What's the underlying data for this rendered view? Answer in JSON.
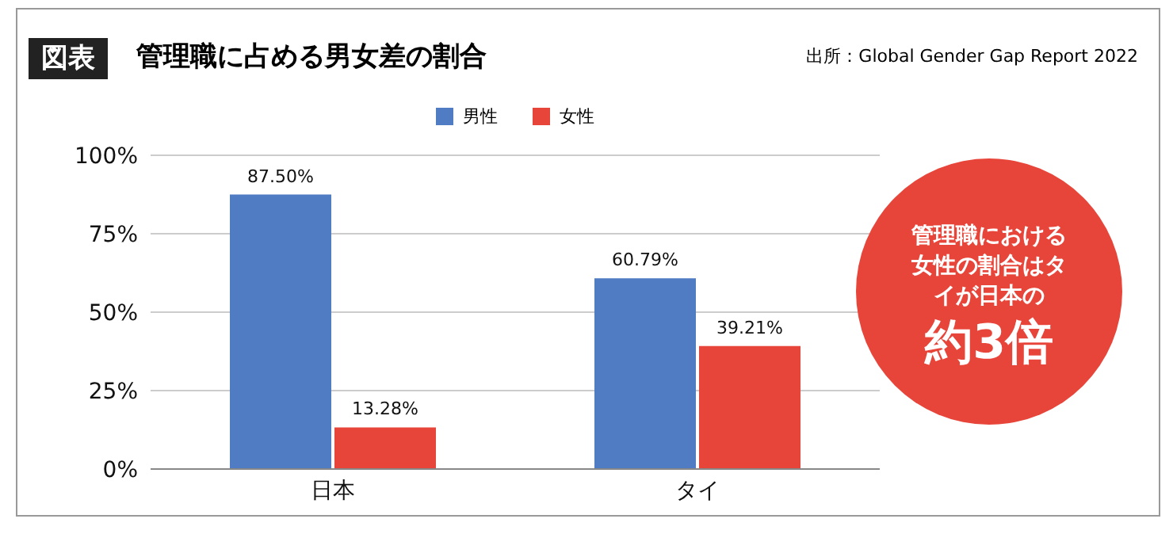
{
  "chart_data": {
    "type": "bar",
    "title": "管理職に占める男女差の割合",
    "categories": [
      "日本",
      "タイ"
    ],
    "series": [
      {
        "name": "男性",
        "color": "#4f7cc3",
        "values": [
          87.5,
          60.79
        ],
        "value_labels": [
          "87.50%",
          "60.79%"
        ]
      },
      {
        "name": "女性",
        "color": "#e8453a",
        "values": [
          13.28,
          39.21
        ],
        "value_labels": [
          "13.28%",
          "39.21%"
        ]
      }
    ],
    "ylim": [
      0,
      100
    ],
    "yticks": [
      {
        "value": 0,
        "label": "0%"
      },
      {
        "value": 25,
        "label": "25%"
      },
      {
        "value": 50,
        "label": "50%"
      },
      {
        "value": 75,
        "label": "75%"
      },
      {
        "value": 100,
        "label": "100%"
      }
    ],
    "grid": "y",
    "legend": "top",
    "annotations": [
      "図表",
      "出所：Global Gender Gap Report 2022",
      "管理職における女性の割合はタイが日本の",
      "約3倍"
    ]
  }
}
